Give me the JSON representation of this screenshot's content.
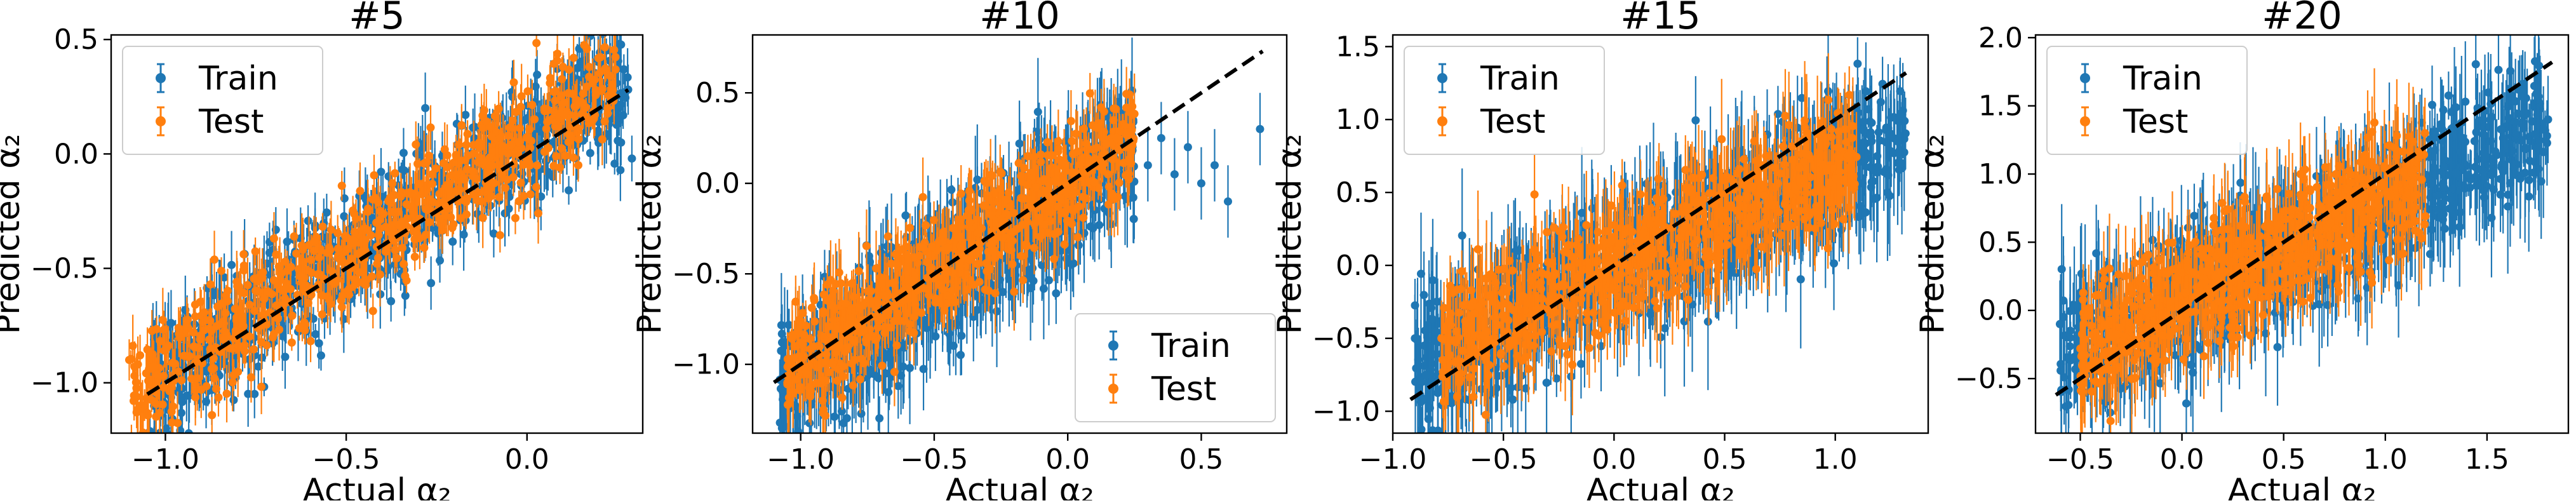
{
  "colors": {
    "train": "#1f77b4",
    "test": "#ff7f0e",
    "identity_line": "#000000"
  },
  "chart_data": [
    {
      "type": "scatter",
      "title": "#5",
      "xlabel": "Actual α₂",
      "ylabel": "Predicted α₂",
      "xlim": [
        -1.15,
        0.32
      ],
      "ylim": [
        -1.22,
        0.52
      ],
      "xticks": [
        -1.0,
        -0.5,
        0.0
      ],
      "xtick_labels": [
        "−1.0",
        "−0.5",
        "0.0"
      ],
      "yticks": [
        -1.0,
        -0.5,
        0.0,
        0.5
      ],
      "ytick_labels": [
        "−1.0",
        "−0.5",
        "0.0",
        "0.5"
      ],
      "identity_line": [
        [
          -1.05,
          -1.05
        ],
        [
          0.28,
          0.28
        ]
      ],
      "legend": {
        "position": "upper left",
        "entries": [
          "Train",
          "Test"
        ]
      },
      "series": [
        {
          "name": "Train",
          "color": "#1f77b4",
          "trend": {
            "x_range": [
              -1.05,
              0.28
            ],
            "slope": 1.02,
            "intercept": 0.06,
            "spread": 0.26,
            "errbar": 0.1
          },
          "outliers": [
            [
              0.26,
              0.05
            ],
            [
              0.29,
              -0.02
            ],
            [
              0.27,
              0.27
            ],
            [
              0.2,
              0.25
            ]
          ]
        },
        {
          "name": "Test",
          "color": "#ff7f0e",
          "trend": {
            "x_range": [
              -1.1,
              0.25
            ],
            "slope": 1.02,
            "intercept": 0.07,
            "spread": 0.24,
            "errbar": 0.09
          },
          "outliers": [
            [
              -1.1,
              -0.9
            ],
            [
              -1.07,
              -0.88
            ]
          ]
        }
      ]
    },
    {
      "type": "scatter",
      "title": "#10",
      "xlabel": "Actual α₂",
      "ylabel": "Predicted α₂",
      "xlim": [
        -1.18,
        0.82
      ],
      "ylim": [
        -1.38,
        0.82
      ],
      "xticks": [
        -1.0,
        -0.5,
        0.0,
        0.5
      ],
      "xtick_labels": [
        "−1.0",
        "−0.5",
        "0.0",
        "0.5"
      ],
      "yticks": [
        -1.0,
        -0.5,
        0.0,
        0.5
      ],
      "ytick_labels": [
        "−1.0",
        "−0.5",
        "0.0",
        "0.5"
      ],
      "identity_line": [
        [
          -1.1,
          -1.1
        ],
        [
          0.73,
          0.73
        ]
      ],
      "legend": {
        "position": "lower right",
        "entries": [
          "Train",
          "Test"
        ]
      },
      "series": [
        {
          "name": "Train",
          "color": "#1f77b4",
          "trend": {
            "x_range": [
              -1.08,
              0.25
            ],
            "slope": 1.0,
            "intercept": -0.05,
            "spread": 0.34,
            "errbar": 0.2
          },
          "outliers": [
            [
              0.3,
              0.1
            ],
            [
              0.4,
              0.05
            ],
            [
              0.5,
              0.0
            ],
            [
              0.55,
              0.1
            ],
            [
              0.6,
              -0.1
            ],
            [
              0.72,
              0.3
            ],
            [
              0.45,
              0.2
            ],
            [
              0.35,
              0.25
            ]
          ]
        },
        {
          "name": "Test",
          "color": "#ff7f0e",
          "trend": {
            "x_range": [
              -1.05,
              0.25
            ],
            "slope": 1.0,
            "intercept": 0.02,
            "spread": 0.3,
            "errbar": 0.14
          },
          "outliers": []
        }
      ]
    },
    {
      "type": "scatter",
      "title": "#15",
      "xlabel": "Actual α₂",
      "ylabel": "Predicted α₂",
      "xlim": [
        -1.0,
        1.42
      ],
      "ylim": [
        -1.15,
        1.58
      ],
      "xticks": [
        -1.0,
        -0.5,
        0.0,
        0.5,
        1.0
      ],
      "xtick_labels": [
        "−1.0",
        "−0.5",
        "0.0",
        "0.5",
        "1.0"
      ],
      "yticks": [
        -1.0,
        -0.5,
        0.0,
        0.5,
        1.0,
        1.5
      ],
      "ytick_labels": [
        "−1.0",
        "−0.5",
        "0.0",
        "0.5",
        "1.0",
        "1.5"
      ],
      "identity_line": [
        [
          -0.92,
          -0.92
        ],
        [
          1.32,
          1.32
        ]
      ],
      "legend": {
        "position": "upper left",
        "entries": [
          "Train",
          "Test"
        ]
      },
      "series": [
        {
          "name": "Train",
          "color": "#1f77b4",
          "trend": {
            "x_range": [
              -0.9,
              1.32
            ],
            "slope": 0.72,
            "intercept": -0.05,
            "spread": 0.45,
            "errbar": 0.3
          },
          "outliers": [
            [
              -0.9,
              -0.5
            ],
            [
              -0.85,
              -0.75
            ],
            [
              1.25,
              0.9
            ],
            [
              1.3,
              0.7
            ]
          ]
        },
        {
          "name": "Test",
          "color": "#ff7f0e",
          "trend": {
            "x_range": [
              -0.78,
              1.1
            ],
            "slope": 0.72,
            "intercept": 0.0,
            "spread": 0.42,
            "errbar": 0.26
          },
          "outliers": [
            [
              -0.78,
              -0.5
            ]
          ]
        }
      ]
    },
    {
      "type": "scatter",
      "title": "#20",
      "xlabel": "Actual α₂",
      "ylabel": "Predicted α₂",
      "xlim": [
        -0.72,
        1.9
      ],
      "ylim": [
        -0.9,
        2.02
      ],
      "xticks": [
        -0.5,
        0.0,
        0.5,
        1.0,
        1.5
      ],
      "xtick_labels": [
        "−0.5",
        "0.0",
        "0.5",
        "1.0",
        "1.5"
      ],
      "yticks": [
        -0.5,
        0.0,
        0.5,
        1.0,
        1.5,
        2.0
      ],
      "ytick_labels": [
        "−0.5",
        "0.0",
        "0.5",
        "1.0",
        "1.5",
        "2.0"
      ],
      "identity_line": [
        [
          -0.62,
          -0.62
        ],
        [
          1.82,
          1.82
        ]
      ],
      "legend": {
        "position": "upper left",
        "entries": [
          "Train",
          "Test"
        ]
      },
      "series": [
        {
          "name": "Train",
          "color": "#1f77b4",
          "trend": {
            "x_range": [
              -0.6,
              1.8
            ],
            "slope": 0.72,
            "intercept": 0.08,
            "spread": 0.48,
            "errbar": 0.32
          },
          "outliers": [
            [
              -0.6,
              -0.1
            ],
            [
              -0.55,
              -0.2
            ],
            [
              1.75,
              1.2
            ],
            [
              1.8,
              1.4
            ]
          ]
        },
        {
          "name": "Test",
          "color": "#ff7f0e",
          "trend": {
            "x_range": [
              -0.5,
              1.2
            ],
            "slope": 0.72,
            "intercept": 0.1,
            "spread": 0.44,
            "errbar": 0.26
          },
          "outliers": [
            [
              -0.48,
              -0.05
            ]
          ]
        }
      ]
    }
  ]
}
